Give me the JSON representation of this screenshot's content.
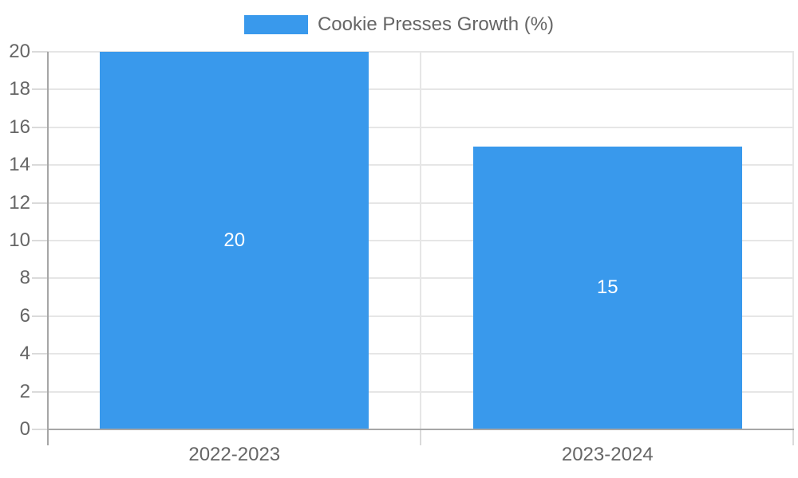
{
  "chart_data": {
    "type": "bar",
    "title": "",
    "legend": {
      "label": "Cookie Presses Growth (%)",
      "position": "top"
    },
    "categories": [
      "2022-2023",
      "2023-2024"
    ],
    "series": [
      {
        "name": "Cookie Presses Growth (%)",
        "values": [
          20,
          15
        ]
      }
    ],
    "data_labels": [
      "20",
      "15"
    ],
    "y_axis": {
      "min": 0,
      "max": 20,
      "tick_step": 2,
      "ticks": [
        0,
        2,
        4,
        6,
        8,
        10,
        12,
        14,
        16,
        18,
        20
      ]
    },
    "grid": true,
    "bar_width_fraction": 0.72,
    "colors": {
      "bar": "#3999EC",
      "data_label": "#FFFFFF",
      "tick_text": "#666666",
      "gridline": "#E6E6E6",
      "tick_mark": "#DADADA",
      "axis_line": "#A6A6A6",
      "background": "#FFFFFF"
    }
  }
}
